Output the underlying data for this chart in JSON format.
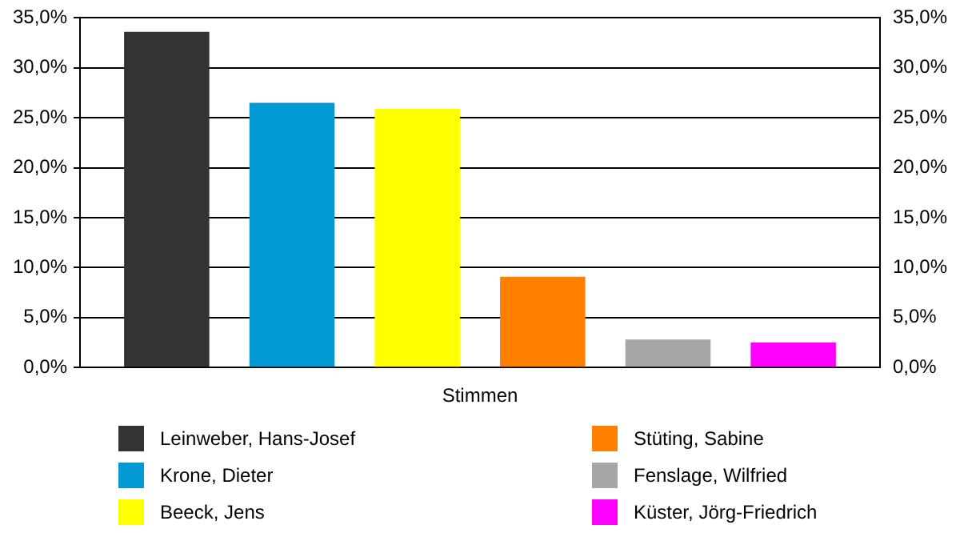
{
  "chart_data": {
    "type": "bar",
    "categories": [
      "Stimmen"
    ],
    "series": [
      {
        "name": "Leinweber, Hans-Josef",
        "color": "#333333",
        "values": [
          33.6
        ]
      },
      {
        "name": "Krone, Dieter",
        "color": "#0099d4",
        "values": [
          26.5
        ]
      },
      {
        "name": "Beeck, Jens",
        "color": "#ffff00",
        "values": [
          25.9
        ]
      },
      {
        "name": "Stüting, Sabine",
        "color": "#ff7f00",
        "values": [
          9.1
        ]
      },
      {
        "name": "Fenslage, Wilfried",
        "color": "#a6a6a6",
        "values": [
          2.8
        ]
      },
      {
        "name": "Küster, Jörg-Friedrich",
        "color": "#ff00ff",
        "values": [
          2.5
        ]
      }
    ],
    "ylim": [
      0,
      35
    ],
    "yticks": [
      {
        "value": 0,
        "label": "0,0%"
      },
      {
        "value": 5,
        "label": "5,0%"
      },
      {
        "value": 10,
        "label": "10,0%"
      },
      {
        "value": 15,
        "label": "15,0%"
      },
      {
        "value": 20,
        "label": "20,0%"
      },
      {
        "value": 25,
        "label": "25,0%"
      },
      {
        "value": 30,
        "label": "30,0%"
      },
      {
        "value": 35,
        "label": "35,0%"
      }
    ],
    "grid": "y",
    "legend": "bottom"
  }
}
